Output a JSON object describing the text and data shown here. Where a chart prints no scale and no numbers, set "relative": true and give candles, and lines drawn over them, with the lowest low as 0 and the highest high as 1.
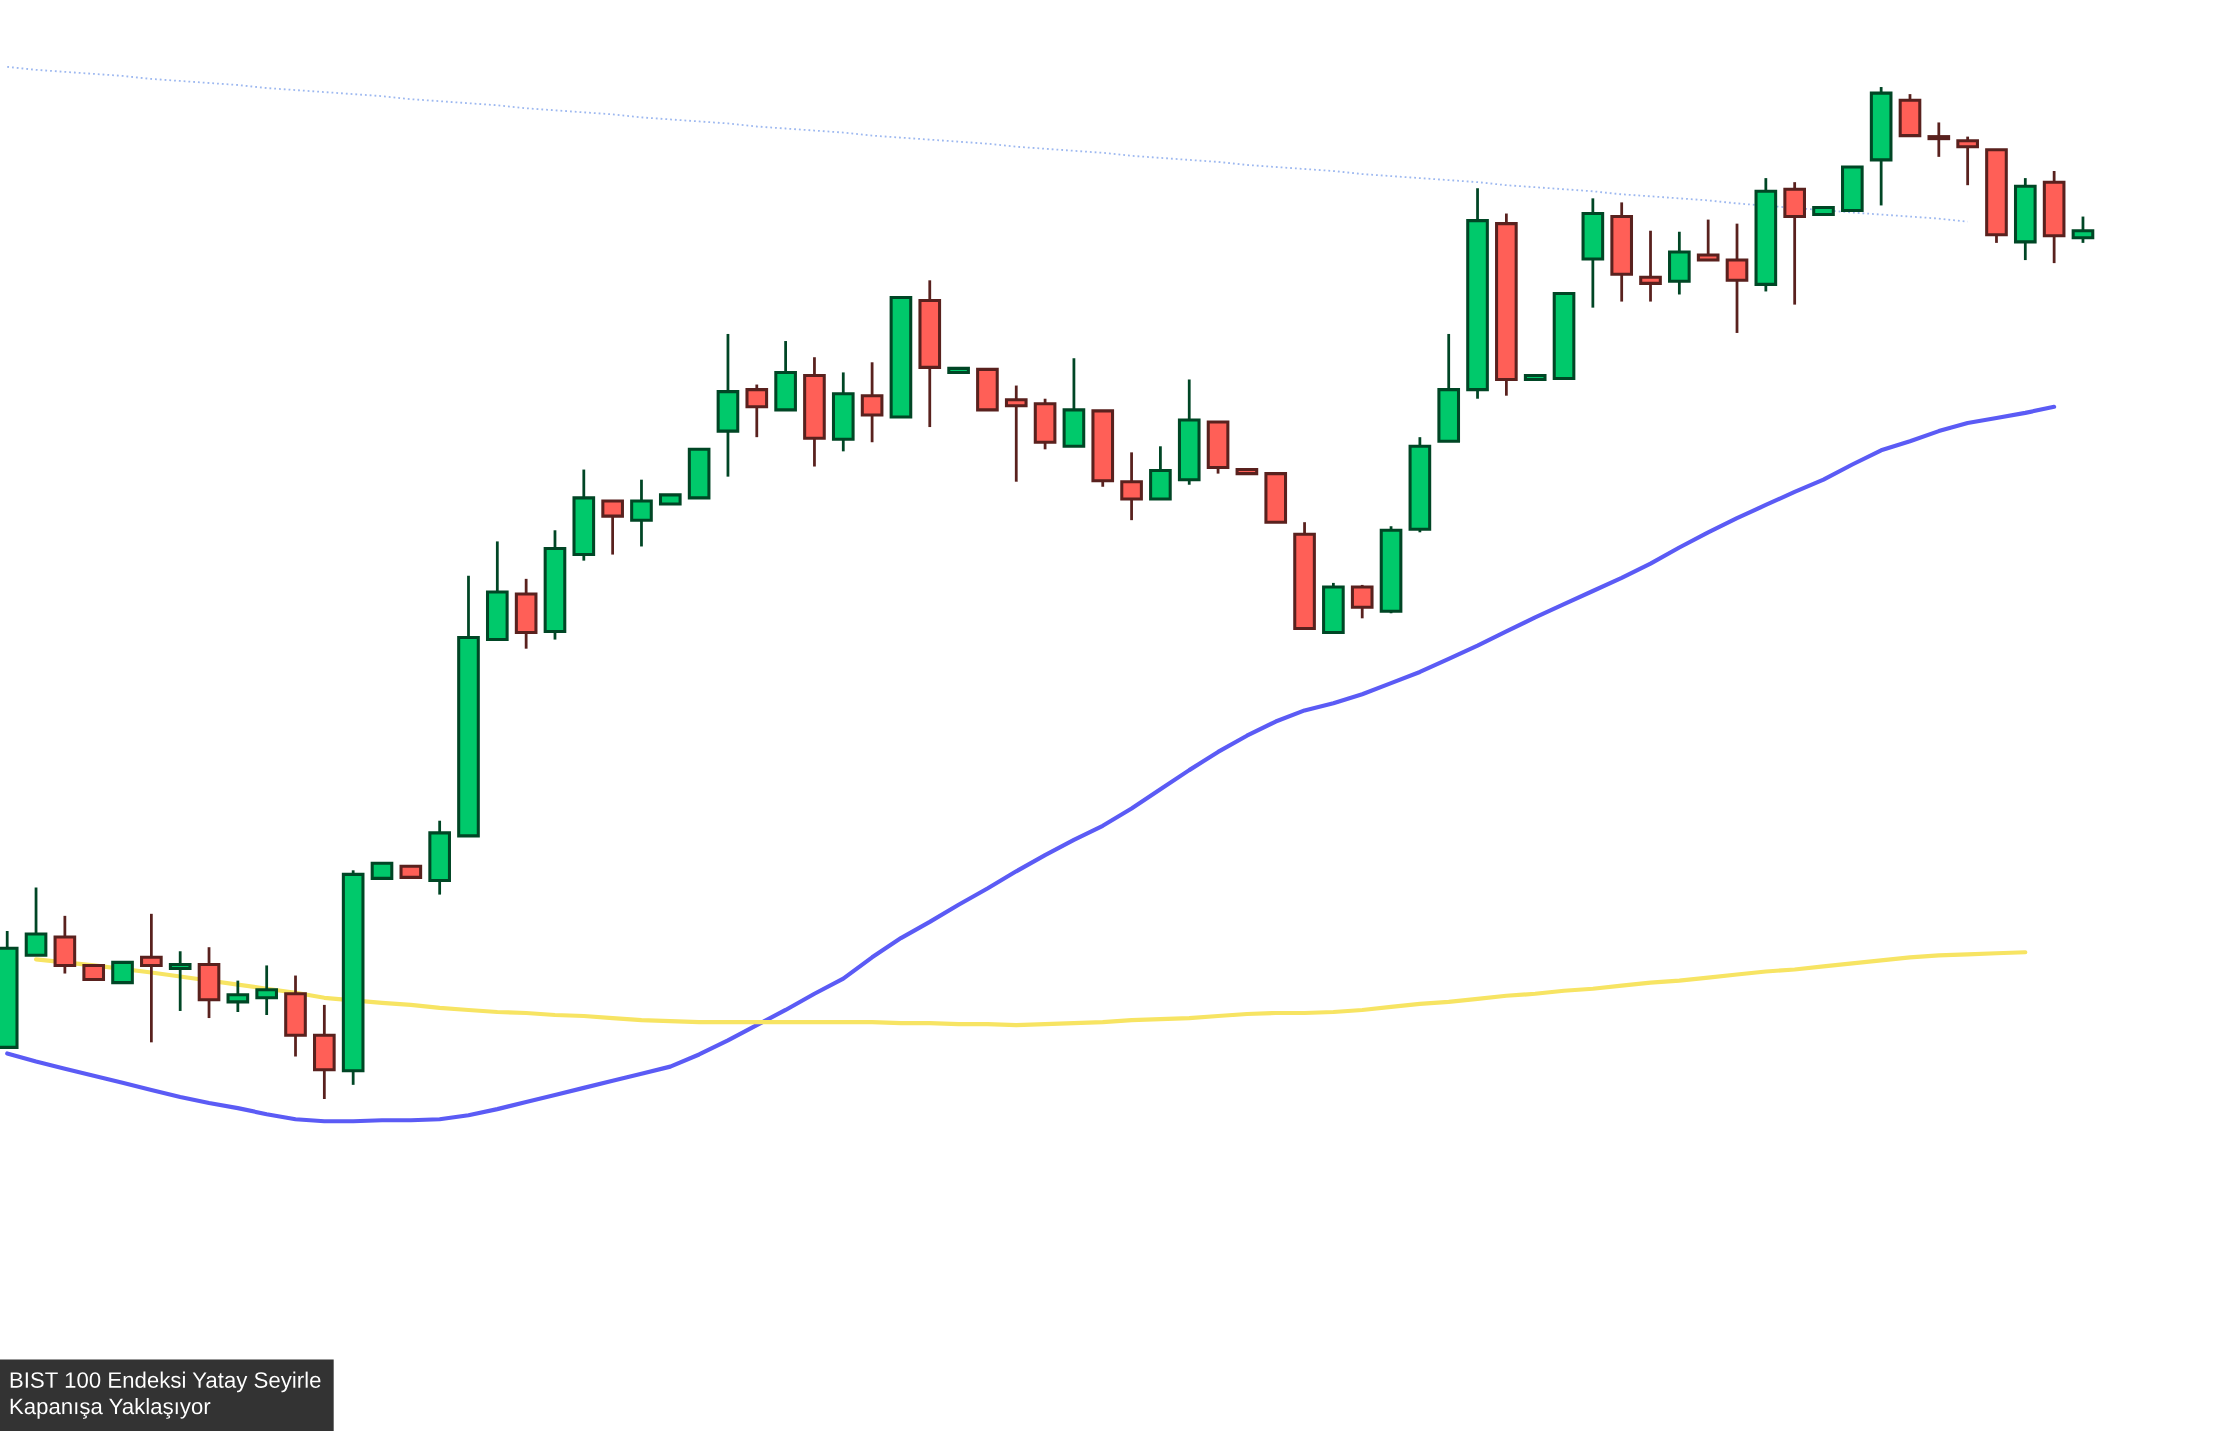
{
  "chart_data": {
    "type": "candlestick",
    "relative": true,
    "categories": [
      null,
      null,
      null,
      null,
      null,
      null,
      null,
      null,
      null,
      null,
      null,
      null,
      null,
      null,
      null,
      null,
      null,
      null,
      null,
      null,
      null,
      null,
      null,
      null,
      null,
      null,
      null,
      null,
      null,
      null,
      null,
      null,
      null,
      null,
      null,
      null,
      null,
      null,
      null,
      null,
      null,
      null,
      null,
      null,
      null,
      null,
      null,
      null,
      null,
      null,
      null,
      null,
      null,
      null,
      null,
      null,
      null,
      null,
      null,
      null,
      null,
      null,
      null,
      null,
      null,
      null,
      null,
      null,
      null,
      null,
      null,
      null,
      null
    ],
    "ohlc": [
      [
        0.051,
        0.166,
        0.051,
        0.149
      ],
      [
        0.142,
        0.209,
        0.142,
        0.163
      ],
      [
        0.16,
        0.181,
        0.124,
        0.132
      ],
      [
        0.132,
        0.132,
        0.118,
        0.118
      ],
      [
        0.115,
        0.135,
        0.115,
        0.135
      ],
      [
        0.14,
        0.183,
        0.056,
        0.132
      ],
      [
        0.129,
        0.146,
        0.087,
        0.133
      ],
      [
        0.133,
        0.15,
        0.08,
        0.098
      ],
      [
        0.096,
        0.117,
        0.086,
        0.103
      ],
      [
        0.1,
        0.132,
        0.083,
        0.108
      ],
      [
        0.104,
        0.122,
        0.042,
        0.063
      ],
      [
        0.063,
        0.093,
        0.0,
        0.029
      ],
      [
        0.028,
        0.226,
        0.014,
        0.222
      ],
      [
        0.218,
        0.233,
        0.218,
        0.233
      ],
      [
        0.23,
        0.23,
        0.219,
        0.219
      ],
      [
        0.216,
        0.275,
        0.202,
        0.263
      ],
      [
        0.26,
        0.517,
        0.26,
        0.456
      ],
      [
        0.454,
        0.551,
        0.454,
        0.501
      ],
      [
        0.499,
        0.514,
        0.445,
        0.461
      ],
      [
        0.462,
        0.562,
        0.454,
        0.544
      ],
      [
        0.538,
        0.622,
        0.532,
        0.594
      ],
      [
        0.591,
        0.591,
        0.538,
        0.576
      ],
      [
        0.572,
        0.612,
        0.546,
        0.591
      ],
      [
        0.588,
        0.597,
        0.588,
        0.597
      ],
      [
        0.594,
        0.642,
        0.594,
        0.642
      ],
      [
        0.66,
        0.756,
        0.615,
        0.699
      ],
      [
        0.701,
        0.706,
        0.654,
        0.684
      ],
      [
        0.681,
        0.749,
        0.681,
        0.718
      ],
      [
        0.715,
        0.733,
        0.625,
        0.653
      ],
      [
        0.652,
        0.718,
        0.64,
        0.697
      ],
      [
        0.695,
        0.728,
        0.649,
        0.676
      ],
      [
        0.674,
        0.792,
        0.674,
        0.792
      ],
      [
        0.789,
        0.809,
        0.664,
        0.723
      ],
      [
        0.718,
        0.722,
        0.718,
        0.722
      ],
      [
        0.721,
        0.721,
        0.681,
        0.681
      ],
      [
        0.691,
        0.705,
        0.61,
        0.685
      ],
      [
        0.687,
        0.692,
        0.642,
        0.649
      ],
      [
        0.645,
        0.732,
        0.645,
        0.681
      ],
      [
        0.68,
        0.68,
        0.605,
        0.611
      ],
      [
        0.61,
        0.639,
        0.572,
        0.593
      ],
      [
        0.593,
        0.645,
        0.593,
        0.621
      ],
      [
        0.612,
        0.711,
        0.607,
        0.671
      ],
      [
        0.669,
        0.669,
        0.618,
        0.624
      ],
      [
        0.622,
        0.622,
        0.618,
        0.618
      ],
      [
        0.618,
        0.618,
        0.57,
        0.57
      ],
      [
        0.558,
        0.57,
        0.465,
        0.465
      ],
      [
        0.461,
        0.51,
        0.461,
        0.506
      ],
      [
        0.506,
        0.508,
        0.475,
        0.486
      ],
      [
        0.482,
        0.566,
        0.48,
        0.562
      ],
      [
        0.563,
        0.654,
        0.56,
        0.645
      ],
      [
        0.65,
        0.756,
        0.65,
        0.701
      ],
      [
        0.701,
        0.9,
        0.692,
        0.868
      ],
      [
        0.865,
        0.875,
        0.695,
        0.711
      ],
      [
        0.711,
        0.715,
        0.711,
        0.715
      ],
      [
        0.712,
        0.796,
        0.712,
        0.796
      ],
      [
        0.83,
        0.89,
        0.782,
        0.875
      ],
      [
        0.872,
        0.886,
        0.788,
        0.815
      ],
      [
        0.812,
        0.858,
        0.788,
        0.806
      ],
      [
        0.808,
        0.857,
        0.795,
        0.837
      ],
      [
        0.834,
        0.869,
        0.829,
        0.829
      ],
      [
        0.829,
        0.865,
        0.757,
        0.809
      ],
      [
        0.805,
        0.91,
        0.798,
        0.897
      ],
      [
        0.899,
        0.906,
        0.785,
        0.872
      ],
      [
        0.874,
        0.881,
        0.874,
        0.881
      ],
      [
        0.878,
        0.921,
        0.878,
        0.921
      ],
      [
        0.928,
        1.0,
        0.883,
        0.994
      ],
      [
        0.987,
        0.993,
        0.952,
        0.952
      ],
      [
        0.951,
        0.965,
        0.931,
        0.949
      ],
      [
        0.947,
        0.951,
        0.903,
        0.941
      ],
      [
        0.938,
        0.938,
        0.846,
        0.854
      ],
      [
        0.847,
        0.91,
        0.829,
        0.902
      ],
      [
        0.906,
        0.917,
        0.826,
        0.853
      ],
      [
        0.851,
        0.872,
        0.846,
        0.858
      ]
    ],
    "colors": [
      "#00c96b",
      "#00c96b",
      "#ff5f57",
      "#ff5f57",
      "#00c96b",
      "#ff5f57",
      "#00c96b",
      "#ff5f57",
      "#00c96b",
      "#00c96b",
      "#ff5f57",
      "#ff5f57",
      "#00c96b",
      "#00c96b",
      "#ff5f57",
      "#00c96b",
      "#00c96b",
      "#00c96b",
      "#ff5f57",
      "#00c96b",
      "#00c96b",
      "#ff5f57",
      "#00c96b",
      "#00c96b",
      "#00c96b",
      "#00c96b",
      "#ff5f57",
      "#00c96b",
      "#ff5f57",
      "#00c96b",
      "#ff5f57",
      "#00c96b",
      "#ff5f57",
      "#00c96b",
      "#ff5f57",
      "#ff5f57",
      "#ff5f57",
      "#00c96b",
      "#ff5f57",
      "#ff5f57",
      "#00c96b",
      "#00c96b",
      "#ff5f57",
      "#ff5f57",
      "#ff5f57",
      "#ff5f57",
      "#00c96b",
      "#ff5f57",
      "#00c96b",
      "#00c96b",
      "#00c96b",
      "#00c96b",
      "#ff5f57",
      "#00c96b",
      "#00c96b",
      "#00c96b",
      "#ff5f57",
      "#ff5f57",
      "#00c96b",
      "#ff5f57",
      "#ff5f57",
      "#00c96b",
      "#ff5f57",
      "#00c96b",
      "#00c96b",
      "#00c96b",
      "#ff5f57",
      "#ff5f57",
      "#ff5f57",
      "#ff5f57",
      "#00c96b",
      "#ff5f57",
      "#00c96b"
    ],
    "series": [
      {
        "type": "line",
        "color": "#5b5bf5",
        "line_style": "solid",
        "values": [
          0.045,
          0.037,
          0.03,
          0.023,
          0.016,
          0.009,
          0.002,
          -0.004,
          -0.009,
          -0.015,
          -0.02,
          -0.022,
          -0.022,
          -0.021,
          -0.021,
          -0.02,
          -0.016,
          -0.01,
          -0.003,
          0.004,
          0.011,
          0.018,
          0.025,
          0.032,
          0.044,
          0.058,
          0.073,
          0.088,
          0.104,
          0.119,
          0.14,
          0.159,
          0.175,
          0.192,
          0.208,
          0.225,
          0.241,
          0.256,
          0.27,
          0.287,
          0.306,
          0.325,
          0.343,
          0.359,
          0.373,
          0.384,
          0.391,
          0.4,
          0.411,
          0.422,
          0.435,
          0.448,
          0.462,
          0.476,
          0.489,
          0.502,
          0.515,
          0.529,
          0.545,
          0.56,
          0.574,
          0.587,
          0.6,
          0.612,
          0.627,
          0.641,
          0.65,
          0.66,
          0.668,
          0.673,
          0.678,
          0.684,
          null
        ]
      },
      {
        "type": "line",
        "color": "#f7e463",
        "line_style": "solid",
        "values": [
          null,
          0.138,
          null,
          0.132,
          null,
          0.125,
          0.121,
          null,
          0.113,
          0.109,
          0.105,
          0.1,
          null,
          0.095,
          0.093,
          0.09,
          0.088,
          0.086,
          0.085,
          0.083,
          0.082,
          0.08,
          0.078,
          0.077,
          0.076,
          0.076,
          0.076,
          0.076,
          0.076,
          0.076,
          0.076,
          0.075,
          0.075,
          0.074,
          0.074,
          0.073,
          0.074,
          0.075,
          0.076,
          0.078,
          0.079,
          0.08,
          0.082,
          0.084,
          0.085,
          0.085,
          0.086,
          0.088,
          0.091,
          0.094,
          0.096,
          0.099,
          0.102,
          0.104,
          0.107,
          0.109,
          0.112,
          0.115,
          0.117,
          0.12,
          0.123,
          0.126,
          0.128,
          0.131,
          0.134,
          0.137,
          0.14,
          0.142,
          0.143,
          0.144,
          0.145,
          null,
          null
        ]
      },
      {
        "type": "line",
        "color": "#9db8f0",
        "line_style": "dotted",
        "values": [
          1.02,
          1.017,
          1.015,
          1.013,
          1.011,
          1.008,
          1.006,
          1.004,
          1.002,
          0.999,
          0.997,
          0.995,
          0.993,
          0.991,
          0.988,
          0.986,
          0.984,
          0.982,
          0.979,
          0.977,
          0.975,
          0.973,
          0.97,
          0.968,
          0.966,
          0.964,
          0.961,
          0.959,
          0.957,
          0.955,
          0.952,
          0.95,
          0.948,
          0.946,
          0.944,
          0.941,
          0.939,
          0.937,
          0.935,
          0.932,
          0.93,
          0.928,
          0.926,
          0.923,
          0.921,
          0.919,
          0.917,
          0.914,
          0.912,
          0.91,
          0.908,
          0.906,
          0.903,
          0.901,
          0.899,
          0.897,
          0.894,
          0.892,
          0.89,
          0.888,
          0.885,
          null,
          null,
          null,
          0.876,
          0.874,
          0.872,
          0.87,
          0.867,
          null,
          null,
          null,
          null
        ]
      }
    ],
    "annotations": [
      "BIST 100 Endeksi Yatay Seyirle\nKapanışa Yaklaşıyor"
    ]
  }
}
